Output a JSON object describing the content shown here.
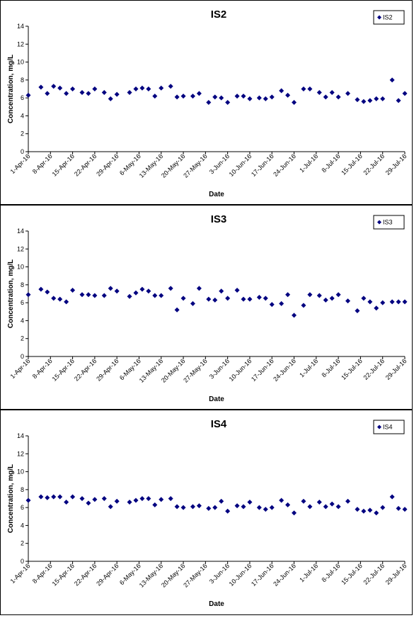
{
  "chart_data": [
    {
      "type": "scatter",
      "title": "IS2",
      "xlabel": "Date",
      "ylabel": "Concentration, mg/L",
      "ylim": [
        0,
        14
      ],
      "yticks": [
        0,
        2,
        4,
        6,
        8,
        10,
        12,
        14
      ],
      "xlim": [
        "2016-04-01",
        "2016-07-29"
      ],
      "xtick_labels": [
        "1-Apr-16",
        "8-Apr-16",
        "15-Apr-16",
        "22-Apr-16",
        "29-Apr-16",
        "6-May-16",
        "13-May-16",
        "20-May-16",
        "27-May-16",
        "3-Jun-16",
        "10-Jun-16",
        "17-Jun-16",
        "24-Jun-16",
        "1-Jul-16",
        "8-Jul-16",
        "15-Jul-16",
        "22-Jul-16",
        "29-Jul-16"
      ],
      "legend_position": "top-right",
      "series": [
        {
          "name": "IS2",
          "color": "#000080",
          "points": [
            [
              "2016-04-01",
              6.3
            ],
            [
              "2016-04-05",
              7.2
            ],
            [
              "2016-04-07",
              6.5
            ],
            [
              "2016-04-09",
              7.3
            ],
            [
              "2016-04-11",
              7.1
            ],
            [
              "2016-04-13",
              6.5
            ],
            [
              "2016-04-15",
              7.0
            ],
            [
              "2016-04-18",
              6.6
            ],
            [
              "2016-04-20",
              6.5
            ],
            [
              "2016-04-22",
              7.0
            ],
            [
              "2016-04-25",
              6.6
            ],
            [
              "2016-04-27",
              5.9
            ],
            [
              "2016-04-29",
              6.4
            ],
            [
              "2016-05-03",
              6.6
            ],
            [
              "2016-05-05",
              7.0
            ],
            [
              "2016-05-07",
              7.1
            ],
            [
              "2016-05-09",
              7.0
            ],
            [
              "2016-05-11",
              6.2
            ],
            [
              "2016-05-13",
              7.1
            ],
            [
              "2016-05-16",
              7.3
            ],
            [
              "2016-05-18",
              6.1
            ],
            [
              "2016-05-20",
              6.2
            ],
            [
              "2016-05-23",
              6.2
            ],
            [
              "2016-05-25",
              6.5
            ],
            [
              "2016-05-28",
              5.5
            ],
            [
              "2016-05-30",
              6.1
            ],
            [
              "2016-06-01",
              6.0
            ],
            [
              "2016-06-03",
              5.5
            ],
            [
              "2016-06-06",
              6.2
            ],
            [
              "2016-06-08",
              6.2
            ],
            [
              "2016-06-10",
              5.9
            ],
            [
              "2016-06-13",
              6.0
            ],
            [
              "2016-06-15",
              5.9
            ],
            [
              "2016-06-17",
              6.1
            ],
            [
              "2016-06-20",
              6.8
            ],
            [
              "2016-06-22",
              6.3
            ],
            [
              "2016-06-24",
              5.5
            ],
            [
              "2016-06-27",
              7.0
            ],
            [
              "2016-06-29",
              7.0
            ],
            [
              "2016-07-02",
              6.6
            ],
            [
              "2016-07-04",
              6.1
            ],
            [
              "2016-07-06",
              6.6
            ],
            [
              "2016-07-08",
              6.1
            ],
            [
              "2016-07-11",
              6.5
            ],
            [
              "2016-07-14",
              5.8
            ],
            [
              "2016-07-16",
              5.6
            ],
            [
              "2016-07-18",
              5.7
            ],
            [
              "2016-07-20",
              5.9
            ],
            [
              "2016-07-22",
              5.9
            ],
            [
              "2016-07-25",
              8.0
            ],
            [
              "2016-07-27",
              5.7
            ],
            [
              "2016-07-29",
              6.5
            ]
          ]
        }
      ]
    },
    {
      "type": "scatter",
      "title": "IS3",
      "xlabel": "Date",
      "ylabel": "Concentration, mg/L",
      "ylim": [
        0,
        14
      ],
      "yticks": [
        0,
        2,
        4,
        6,
        8,
        10,
        12,
        14
      ],
      "xlim": [
        "2016-04-01",
        "2016-07-29"
      ],
      "xtick_labels": [
        "1-Apr-16",
        "8-Apr-16",
        "15-Apr-16",
        "22-Apr-16",
        "29-Apr-16",
        "6-May-16",
        "13-May-16",
        "20-May-16",
        "27-May-16",
        "3-Jun-16",
        "10-Jun-16",
        "17-Jun-16",
        "24-Jun-16",
        "1-Jul-16",
        "8-Jul-16",
        "15-Jul-16",
        "22-Jul-16",
        "29-Jul-16"
      ],
      "legend_position": "top-right",
      "series": [
        {
          "name": "IS3",
          "color": "#000080",
          "points": [
            [
              "2016-04-01",
              6.9
            ],
            [
              "2016-04-05",
              7.5
            ],
            [
              "2016-04-07",
              7.2
            ],
            [
              "2016-04-09",
              6.5
            ],
            [
              "2016-04-11",
              6.4
            ],
            [
              "2016-04-13",
              6.1
            ],
            [
              "2016-04-15",
              7.4
            ],
            [
              "2016-04-18",
              6.9
            ],
            [
              "2016-04-20",
              6.9
            ],
            [
              "2016-04-22",
              6.8
            ],
            [
              "2016-04-25",
              6.8
            ],
            [
              "2016-04-27",
              7.6
            ],
            [
              "2016-04-29",
              7.3
            ],
            [
              "2016-05-03",
              6.7
            ],
            [
              "2016-05-05",
              7.1
            ],
            [
              "2016-05-07",
              7.5
            ],
            [
              "2016-05-09",
              7.3
            ],
            [
              "2016-05-11",
              6.8
            ],
            [
              "2016-05-13",
              6.8
            ],
            [
              "2016-05-16",
              7.6
            ],
            [
              "2016-05-18",
              5.2
            ],
            [
              "2016-05-20",
              6.5
            ],
            [
              "2016-05-23",
              5.9
            ],
            [
              "2016-05-25",
              7.6
            ],
            [
              "2016-05-28",
              6.4
            ],
            [
              "2016-05-30",
              6.3
            ],
            [
              "2016-06-01",
              7.3
            ],
            [
              "2016-06-03",
              6.5
            ],
            [
              "2016-06-06",
              7.4
            ],
            [
              "2016-06-08",
              6.4
            ],
            [
              "2016-06-10",
              6.4
            ],
            [
              "2016-06-13",
              6.6
            ],
            [
              "2016-06-15",
              6.5
            ],
            [
              "2016-06-17",
              5.8
            ],
            [
              "2016-06-20",
              5.9
            ],
            [
              "2016-06-22",
              6.9
            ],
            [
              "2016-06-24",
              4.6
            ],
            [
              "2016-06-27",
              5.7
            ],
            [
              "2016-06-29",
              6.9
            ],
            [
              "2016-07-02",
              6.8
            ],
            [
              "2016-07-04",
              6.3
            ],
            [
              "2016-07-06",
              6.5
            ],
            [
              "2016-07-08",
              6.9
            ],
            [
              "2016-07-11",
              6.2
            ],
            [
              "2016-07-14",
              5.1
            ],
            [
              "2016-07-16",
              6.5
            ],
            [
              "2016-07-18",
              6.1
            ],
            [
              "2016-07-20",
              5.4
            ],
            [
              "2016-07-22",
              6.0
            ],
            [
              "2016-07-25",
              6.1
            ],
            [
              "2016-07-27",
              6.1
            ],
            [
              "2016-07-29",
              6.1
            ]
          ]
        }
      ]
    },
    {
      "type": "scatter",
      "title": "IS4",
      "xlabel": "Date",
      "ylabel": "Concentration, mg/L",
      "ylim": [
        0,
        14
      ],
      "yticks": [
        0,
        2,
        4,
        6,
        8,
        10,
        12,
        14
      ],
      "xlim": [
        "2016-04-01",
        "2016-07-29"
      ],
      "xtick_labels": [
        "1-Apr-16",
        "8-Apr-16",
        "15-Apr-16",
        "22-Apr-16",
        "29-Apr-16",
        "6-May-16",
        "13-May-16",
        "20-May-16",
        "27-May-16",
        "3-Jun-16",
        "10-Jun-16",
        "17-Jun-16",
        "24-Jun-16",
        "1-Jul-16",
        "8-Jul-16",
        "15-Jul-16",
        "22-Jul-16",
        "29-Jul-16"
      ],
      "legend_position": "top-right",
      "series": [
        {
          "name": "IS4",
          "color": "#000080",
          "points": [
            [
              "2016-04-01",
              6.8
            ],
            [
              "2016-04-05",
              7.2
            ],
            [
              "2016-04-07",
              7.1
            ],
            [
              "2016-04-09",
              7.2
            ],
            [
              "2016-04-11",
              7.2
            ],
            [
              "2016-04-13",
              6.6
            ],
            [
              "2016-04-15",
              7.2
            ],
            [
              "2016-04-18",
              7.0
            ],
            [
              "2016-04-20",
              6.5
            ],
            [
              "2016-04-22",
              6.9
            ],
            [
              "2016-04-25",
              7.0
            ],
            [
              "2016-04-27",
              6.1
            ],
            [
              "2016-04-29",
              6.7
            ],
            [
              "2016-05-03",
              6.6
            ],
            [
              "2016-05-05",
              6.8
            ],
            [
              "2016-05-07",
              7.0
            ],
            [
              "2016-05-09",
              7.0
            ],
            [
              "2016-05-11",
              6.3
            ],
            [
              "2016-05-13",
              6.9
            ],
            [
              "2016-05-16",
              7.0
            ],
            [
              "2016-05-18",
              6.1
            ],
            [
              "2016-05-20",
              6.0
            ],
            [
              "2016-05-23",
              6.1
            ],
            [
              "2016-05-25",
              6.2
            ],
            [
              "2016-05-28",
              5.9
            ],
            [
              "2016-05-30",
              6.0
            ],
            [
              "2016-06-01",
              6.7
            ],
            [
              "2016-06-03",
              5.6
            ],
            [
              "2016-06-06",
              6.2
            ],
            [
              "2016-06-08",
              6.1
            ],
            [
              "2016-06-10",
              6.6
            ],
            [
              "2016-06-13",
              6.0
            ],
            [
              "2016-06-15",
              5.8
            ],
            [
              "2016-06-17",
              6.0
            ],
            [
              "2016-06-20",
              6.8
            ],
            [
              "2016-06-22",
              6.3
            ],
            [
              "2016-06-24",
              5.4
            ],
            [
              "2016-06-27",
              6.7
            ],
            [
              "2016-06-29",
              6.1
            ],
            [
              "2016-07-02",
              6.6
            ],
            [
              "2016-07-04",
              6.1
            ],
            [
              "2016-07-06",
              6.4
            ],
            [
              "2016-07-08",
              6.1
            ],
            [
              "2016-07-11",
              6.7
            ],
            [
              "2016-07-14",
              5.8
            ],
            [
              "2016-07-16",
              5.6
            ],
            [
              "2016-07-18",
              5.7
            ],
            [
              "2016-07-20",
              5.4
            ],
            [
              "2016-07-22",
              6.0
            ],
            [
              "2016-07-25",
              7.2
            ],
            [
              "2016-07-27",
              5.9
            ],
            [
              "2016-07-29",
              5.8
            ]
          ]
        }
      ]
    }
  ]
}
